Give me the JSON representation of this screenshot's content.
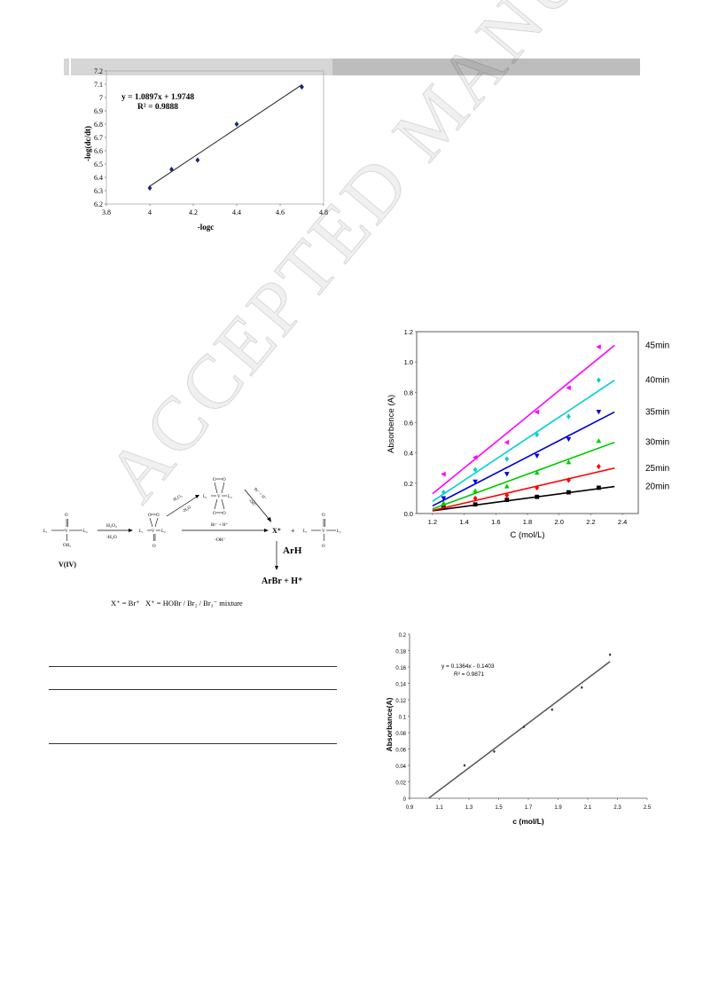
{
  "watermark": "ACCEPTED MANUSCRIPT",
  "chart_data": [
    {
      "type": "scatter",
      "xlabel": "-logc",
      "ylabel": "-log(dc/dt)",
      "xlim": [
        3.8,
        4.8
      ],
      "ylim": [
        6.2,
        7.2
      ],
      "xticks": [
        "3.8",
        "4",
        "4.2",
        "4.4",
        "4.6",
        "4.8"
      ],
      "yticks": [
        "6.2",
        "6.3",
        "6.4",
        "6.5",
        "6.6",
        "6.7",
        "6.8",
        "6.9",
        "7",
        "7.1",
        "7.2"
      ],
      "points": [
        [
          4.0,
          6.32
        ],
        [
          4.1,
          6.46
        ],
        [
          4.22,
          6.53
        ],
        [
          4.4,
          6.8
        ],
        [
          4.7,
          7.08
        ]
      ],
      "fit": {
        "slope": 1.0897,
        "intercept": 1.9748,
        "x_range": [
          4.0,
          4.7
        ]
      },
      "equation": "y = 1.0897x + 1.9748",
      "r2": "R² = 0.9888"
    },
    {
      "type": "scatter",
      "xlabel": "C (mol/L)",
      "ylabel": "Absorbence (A)",
      "xlim": [
        1.1,
        2.5
      ],
      "ylim": [
        0,
        1.2
      ],
      "xticks": [
        "1.2",
        "1.4",
        "1.6",
        "1.8",
        "2.0",
        "2.2",
        "2.4"
      ],
      "yticks": [
        "0.0",
        "0.2",
        "0.4",
        "0.6",
        "0.8",
        "1.0",
        "1.2"
      ],
      "x": [
        1.27,
        1.47,
        1.67,
        1.86,
        2.06,
        2.25
      ],
      "series": [
        {
          "name": "20min",
          "color": "#000000",
          "marker": "square",
          "values": [
            0.04,
            0.06,
            0.09,
            0.11,
            0.14,
            0.17
          ],
          "fit": [
            [
              1.2,
              0.018
            ],
            [
              2.35,
              0.178
            ]
          ]
        },
        {
          "name": "25min",
          "color": "#ff0000",
          "marker": "diamond",
          "values": [
            0.06,
            0.1,
            0.12,
            0.17,
            0.22,
            0.31
          ],
          "fit": [
            [
              1.2,
              0.02
            ],
            [
              2.35,
              0.3
            ]
          ]
        },
        {
          "name": "30min",
          "color": "#00cc00",
          "marker": "triangle-up",
          "values": [
            0.07,
            0.15,
            0.18,
            0.27,
            0.34,
            0.48
          ],
          "fit": [
            [
              1.2,
              0.03
            ],
            [
              2.35,
              0.47
            ]
          ]
        },
        {
          "name": "35min",
          "color": "#0000dd",
          "marker": "triangle-down",
          "values": [
            0.1,
            0.21,
            0.26,
            0.38,
            0.49,
            0.67
          ],
          "fit": [
            [
              1.2,
              0.05
            ],
            [
              2.35,
              0.67
            ]
          ]
        },
        {
          "name": "40min",
          "color": "#00d0d0",
          "marker": "diamond",
          "values": [
            0.14,
            0.29,
            0.36,
            0.52,
            0.64,
            0.88
          ],
          "fit": [
            [
              1.2,
              0.08
            ],
            [
              2.35,
              0.88
            ]
          ]
        },
        {
          "name": "45min",
          "color": "#ff00ff",
          "marker": "triangle-left",
          "values": [
            0.26,
            0.37,
            0.47,
            0.67,
            0.83,
            1.1
          ],
          "fit": [
            [
              1.2,
              0.13
            ],
            [
              2.35,
              1.11
            ]
          ]
        }
      ]
    },
    {
      "type": "scatter",
      "xlabel": "c (mol/L)",
      "ylabel": "Absorbance(A)",
      "xlim": [
        0.9,
        2.5
      ],
      "ylim": [
        0,
        0.2
      ],
      "xticks": [
        "0.9",
        "1.1",
        "1.3",
        "1.5",
        "1.7",
        "1.9",
        "2.1",
        "2.3",
        "2.5"
      ],
      "yticks": [
        "0",
        "0.02",
        "0.04",
        "0.06",
        "0.08",
        "0.1",
        "0.12",
        "0.14",
        "0.16",
        "0.18",
        "0.2"
      ],
      "points": [
        [
          1.27,
          0.04
        ],
        [
          1.47,
          0.057
        ],
        [
          1.67,
          0.087
        ],
        [
          1.86,
          0.108
        ],
        [
          2.06,
          0.135
        ],
        [
          2.25,
          0.175
        ]
      ],
      "fit": {
        "slope": 0.1364,
        "intercept": -0.1403,
        "x_range": [
          1.03,
          2.25
        ]
      },
      "equation": "y = 0.1364x - 0.1403",
      "r2": "R² = 0.9871"
    }
  ],
  "scheme": {
    "v4_label": "V(IV)",
    "step1_top": "H₂O₂",
    "step1_bottom": "-H₂O",
    "upper_top": "H₂O₂",
    "upper_bottom": "-H₂O",
    "right_top": "Br⁻ + H⁺",
    "right_bottom": "-OH⁻",
    "mid_top": "Br⁻ + H⁺",
    "mid_bottom": "-OH⁻",
    "x_plus": "X⁺",
    "plus": "+",
    "arh": "ArH",
    "product": "ArBr + H⁺",
    "bottom_line": "X⁺ = Br⁺   X⁺ = HOBr / Br₂ / Br₃⁻ mixture",
    "L1": "L₁",
    "L2": "L₂",
    "O": "O",
    "OH2": "OH₂",
    "V": "V"
  }
}
